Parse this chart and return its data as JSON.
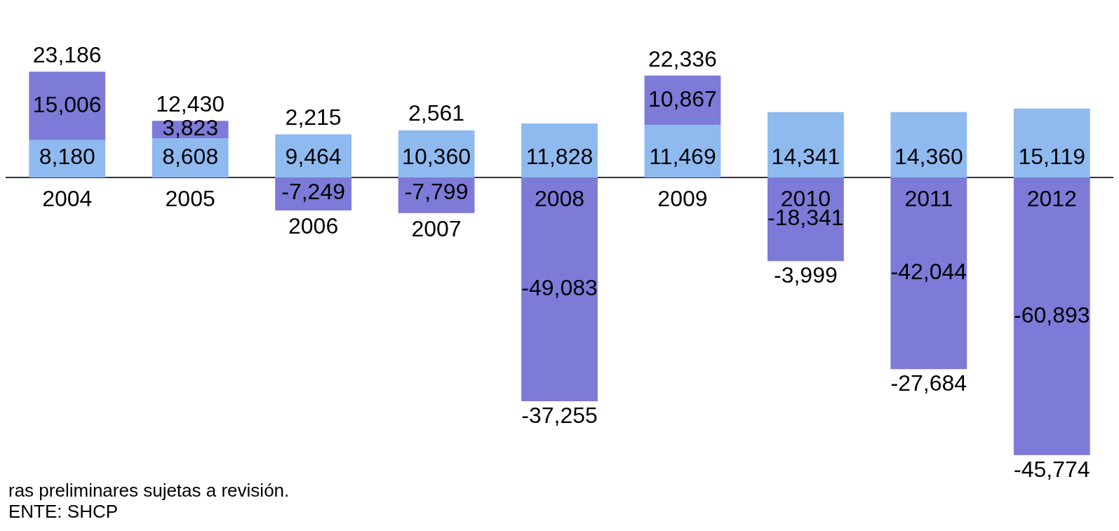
{
  "chart_data": {
    "type": "bar",
    "stacked": true,
    "categories": [
      "2004",
      "2005",
      "2006",
      "2007",
      "2008",
      "2009",
      "2010",
      "2011",
      "2012"
    ],
    "series": [
      {
        "color": "#8fbaf0",
        "values": [
          8180,
          8608,
          9464,
          10360,
          11828,
          11469,
          14341,
          14360,
          15119
        ],
        "value_labels": [
          "8,180",
          "8,608",
          "9,464",
          "10,360",
          "11,828",
          "11,469",
          "14,341",
          "14,360",
          "15,119"
        ]
      },
      {
        "color": "#7d7ad8",
        "values": [
          15006,
          3823,
          -7249,
          -7799,
          -49083,
          10867,
          -18341,
          -42044,
          -60893
        ],
        "value_labels": [
          "15,006",
          "3,823",
          "-7,249",
          "-7,799",
          "-49,083",
          "10,867",
          "-18,341",
          "-42,044",
          "-60,893"
        ]
      }
    ],
    "totals": [
      "23,186",
      "12,430",
      "2,215",
      "2,561",
      "-37,255",
      "22,336",
      "-3,999",
      "-27,684",
      "-45,774"
    ],
    "grid": false,
    "legend": false,
    "annotations": [
      "ras preliminares sujetas a revisión.",
      "ENTE: SHCP"
    ]
  }
}
